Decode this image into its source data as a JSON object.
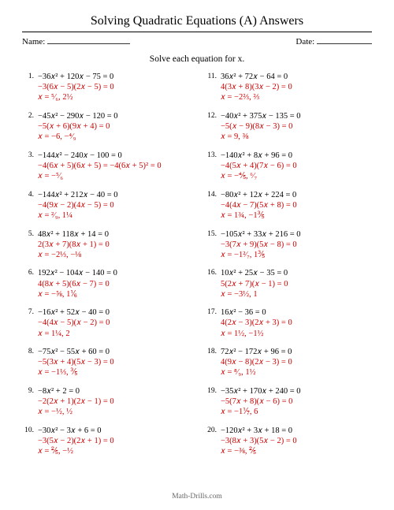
{
  "title": "Solving Quadratic Equations (A) Answers",
  "name_label": "Name:",
  "date_label": "Date:",
  "instruction": "Solve each equation for x.",
  "footer": "Math-Drills.com",
  "colors": {
    "text": "#000000",
    "answer": "#cc0000",
    "footer": "#666666",
    "rule": "#000000",
    "background": "#ffffff"
  },
  "problems": [
    {
      "n": 1,
      "eq": "−36x² + 120x − 75 = 0",
      "fac": "−3(6x − 5)(2x − 5) = 0",
      "sol": "x = ⁵⁄₆, 2½"
    },
    {
      "n": 2,
      "eq": "−45x² − 290x − 120 = 0",
      "fac": "−5(x + 6)(9x + 4) = 0",
      "sol": "x = −6, −⁴⁄₉"
    },
    {
      "n": 3,
      "eq": "−144x² − 240x − 100 = 0",
      "fac": "−4(6x + 5)(6x + 5) = −4(6x + 5)² = 0",
      "sol": "x = −⁵⁄₆"
    },
    {
      "n": 4,
      "eq": "−144x² + 212x − 40 = 0",
      "fac": "−4(9x − 2)(4x − 5) = 0",
      "sol": "x = ²⁄₉, 1¼"
    },
    {
      "n": 5,
      "eq": "48x² + 118x + 14 = 0",
      "fac": "2(3x + 7)(8x + 1) = 0",
      "sol": "x = −2⅓, −⅛"
    },
    {
      "n": 6,
      "eq": "192x² − 104x − 140 = 0",
      "fac": "4(8x + 5)(6x − 7) = 0",
      "sol": "x = −⅝, 1⅙"
    },
    {
      "n": 7,
      "eq": "−16x² + 52x − 40 = 0",
      "fac": "−4(4x − 5)(x − 2) = 0",
      "sol": "x = 1¼, 2"
    },
    {
      "n": 8,
      "eq": "−75x² − 55x + 60 = 0",
      "fac": "−5(3x + 4)(5x − 3) = 0",
      "sol": "x = −1⅓, ⅗"
    },
    {
      "n": 9,
      "eq": "−8x² + 2 = 0",
      "fac": "−2(2x + 1)(2x − 1) = 0",
      "sol": "x = −½, ½"
    },
    {
      "n": 10,
      "eq": "−30x² − 3x + 6 = 0",
      "fac": "−3(5x − 2)(2x + 1) = 0",
      "sol": "x = ⅖, −½"
    },
    {
      "n": 11,
      "eq": "36x² + 72x − 64 = 0",
      "fac": "4(3x + 8)(3x − 2) = 0",
      "sol": "x = −2⅔, ⅔"
    },
    {
      "n": 12,
      "eq": "−40x² + 375x − 135 = 0",
      "fac": "−5(x − 9)(8x − 3) = 0",
      "sol": "x = 9, ⅜"
    },
    {
      "n": 13,
      "eq": "−140x² + 8x + 96 = 0",
      "fac": "−4(5x + 4)(7x − 6) = 0",
      "sol": "x = −⅘, ⁶⁄₇"
    },
    {
      "n": 14,
      "eq": "−80x² + 12x + 224 = 0",
      "fac": "−4(4x − 7)(5x + 8) = 0",
      "sol": "x = 1¾, −1⅗"
    },
    {
      "n": 15,
      "eq": "−105x² + 33x + 216 = 0",
      "fac": "−3(7x + 9)(5x − 8) = 0",
      "sol": "x = −1²⁄₇, 1⅗"
    },
    {
      "n": 16,
      "eq": "10x² + 25x − 35 = 0",
      "fac": "5(2x + 7)(x − 1) = 0",
      "sol": "x = −3½, 1"
    },
    {
      "n": 17,
      "eq": "16x² − 36 = 0",
      "fac": "4(2x − 3)(2x + 3) = 0",
      "sol": "x = 1½, −1½"
    },
    {
      "n": 18,
      "eq": "72x² − 172x + 96 = 0",
      "fac": "4(9x − 8)(2x − 3) = 0",
      "sol": "x = ⁸⁄₉, 1½"
    },
    {
      "n": 19,
      "eq": "−35x² + 170x + 240 = 0",
      "fac": "−5(7x + 8)(x − 6) = 0",
      "sol": "x = −1⅐, 6"
    },
    {
      "n": 20,
      "eq": "−120x² + 3x + 18 = 0",
      "fac": "−3(8x + 3)(5x − 2) = 0",
      "sol": "x = −⅜, ⅖"
    }
  ]
}
